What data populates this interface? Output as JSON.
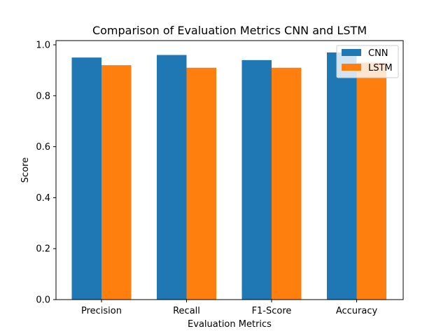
{
  "chart_data": {
    "type": "bar",
    "title": "Comparison of Evaluation Metrics CNN and LSTM",
    "xlabel": "Evaluation Metrics",
    "ylabel": "Score",
    "categories": [
      "Precision",
      "Recall",
      "F1-Score",
      "Accuracy"
    ],
    "series": [
      {
        "name": "CNN",
        "color": "#1f77b4",
        "values": [
          0.95,
          0.96,
          0.94,
          0.97
        ]
      },
      {
        "name": "LSTM",
        "color": "#ff7f0e",
        "values": [
          0.92,
          0.91,
          0.91,
          0.93
        ]
      }
    ],
    "ylim": [
      0,
      1.0
    ],
    "yticks": [
      "0.0",
      "0.2",
      "0.4",
      "0.6",
      "0.8",
      "1.0"
    ],
    "legend_position": "top-right",
    "grid": false
  }
}
